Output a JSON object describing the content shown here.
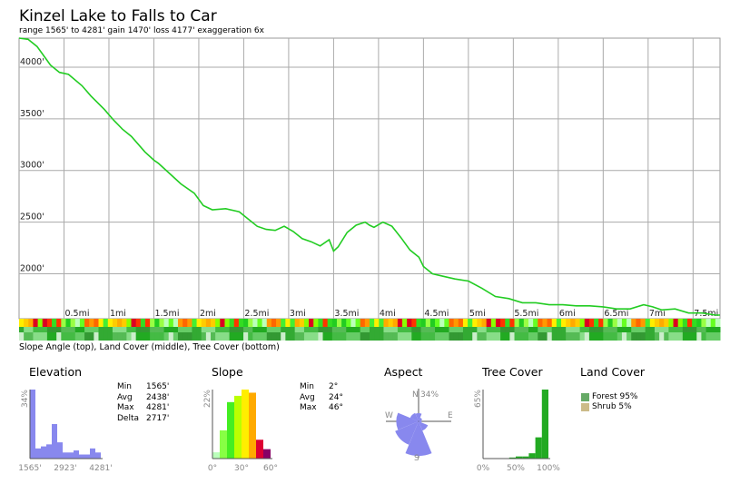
{
  "header": {
    "title": "Kinzel Lake to Falls to Car",
    "subtitle": "range 1565' to 4281'  gain 1470'  loss 4177'  exaggeration 6x"
  },
  "chart_data": [
    {
      "type": "line",
      "name": "elevation-profile",
      "xlim": [
        0,
        7.8
      ],
      "ylim": [
        1565,
        4281
      ],
      "x_ticks": [
        0.5,
        1,
        1.5,
        2,
        2.5,
        3,
        3.5,
        4,
        4.5,
        5,
        5.5,
        6,
        6.5,
        7,
        7.5
      ],
      "x_tick_labels": [
        "0.5mi",
        "1mi",
        "1.5mi",
        "2mi",
        "2.5mi",
        "3mi",
        "3.5mi",
        "4mi",
        "4.5mi",
        "5mi",
        "5.5mi",
        "6mi",
        "6.5mi",
        "7mi",
        "7.5mi"
      ],
      "y_ticks": [
        2000,
        2500,
        3000,
        3500,
        4000
      ],
      "y_tick_labels": [
        "2000'",
        "2500'",
        "3000'",
        "3500'",
        "4000'"
      ],
      "grid": true,
      "series": [
        {
          "color": "#22cc22",
          "x": [
            0,
            0.1,
            0.2,
            0.3,
            0.35,
            0.45,
            0.55,
            0.7,
            0.8,
            0.95,
            1.05,
            1.15,
            1.25,
            1.4,
            1.5,
            1.55,
            1.7,
            1.8,
            1.95,
            2.05,
            2.15,
            2.3,
            2.45,
            2.55,
            2.65,
            2.75,
            2.85,
            2.95,
            3.05,
            3.15,
            3.25,
            3.35,
            3.45,
            3.5,
            3.55,
            3.65,
            3.75,
            3.85,
            3.9,
            3.95,
            4.05,
            4.15,
            4.25,
            4.35,
            4.45,
            4.5,
            4.6,
            4.7,
            4.85,
            5.0,
            5.15,
            5.3,
            5.45,
            5.6,
            5.75,
            5.9,
            6.05,
            6.2,
            6.35,
            6.5,
            6.65,
            6.8,
            6.95,
            7.05,
            7.15,
            7.3,
            7.45,
            7.6,
            7.75,
            7.8
          ],
          "y": [
            4281,
            4270,
            4200,
            4080,
            4020,
            3950,
            3930,
            3820,
            3720,
            3590,
            3490,
            3400,
            3330,
            3180,
            3100,
            3070,
            2950,
            2870,
            2780,
            2660,
            2620,
            2630,
            2600,
            2530,
            2460,
            2430,
            2420,
            2460,
            2410,
            2340,
            2310,
            2270,
            2330,
            2220,
            2260,
            2400,
            2470,
            2500,
            2470,
            2450,
            2500,
            2460,
            2350,
            2230,
            2160,
            2070,
            2000,
            1980,
            1950,
            1930,
            1860,
            1780,
            1760,
            1720,
            1720,
            1700,
            1700,
            1690,
            1690,
            1680,
            1660,
            1660,
            1700,
            1680,
            1650,
            1660,
            1620,
            1620,
            1600,
            1600
          ]
        }
      ]
    },
    {
      "type": "bar",
      "name": "elevation-histogram",
      "title": "Elevation",
      "ylabel": "34%",
      "ylim": [
        0,
        34
      ],
      "x_tick_labels": [
        "1565'",
        "2923'",
        "4281'"
      ],
      "color": "#8888ee",
      "values": [
        34,
        5,
        6,
        7,
        17,
        8,
        3,
        3,
        4,
        2,
        2,
        5,
        3
      ]
    },
    {
      "type": "bar",
      "name": "slope-histogram",
      "title": "Slope",
      "ylabel": "22%",
      "ylim": [
        0,
        22
      ],
      "x_tick_labels": [
        "0°",
        "30°",
        "60°"
      ],
      "values": [
        2,
        9,
        18,
        20,
        22,
        21,
        6,
        3
      ],
      "colors": [
        "#bbffbb",
        "#88ff44",
        "#44ee22",
        "#bbff00",
        "#ffee00",
        "#ffaa00",
        "#dd0033",
        "#880066"
      ]
    },
    {
      "type": "bar",
      "name": "aspect-rose",
      "title": "Aspect",
      "ylabel": "N 34%",
      "categories": [
        "N",
        "NE",
        "E",
        "SE",
        "S",
        "SW",
        "W",
        "NW"
      ],
      "values": [
        8,
        4,
        3,
        10,
        34,
        25,
        22,
        9
      ],
      "color": "#8888ee"
    },
    {
      "type": "bar",
      "name": "tree-cover-histogram",
      "title": "Tree Cover",
      "ylabel": "65%",
      "ylim": [
        0,
        65
      ],
      "x_tick_labels": [
        "0%",
        "50%",
        "100%"
      ],
      "color": "#22aa22",
      "values": [
        0,
        0,
        0,
        0,
        1,
        2,
        2,
        5,
        20,
        65
      ]
    }
  ],
  "strip_caption": "Slope Angle (top), Land Cover (middle), Tree Cover (bottom)",
  "elevation_stats": [
    {
      "k": "Min",
      "v": "1565'"
    },
    {
      "k": "Avg",
      "v": "2438'"
    },
    {
      "k": "Max",
      "v": "4281'"
    },
    {
      "k": "Delta",
      "v": "2717'"
    }
  ],
  "slope_stats": [
    {
      "k": "Min",
      "v": "2°"
    },
    {
      "k": "Avg",
      "v": "24°"
    },
    {
      "k": "Max",
      "v": "46°"
    }
  ],
  "aspect_labels": {
    "n": "N",
    "e": "E",
    "s": "S",
    "w": "W",
    "pct": "34%"
  },
  "land_cover": {
    "title": "Land Cover",
    "items": [
      {
        "label": "Forest 95%",
        "color": "#66aa66"
      },
      {
        "label": "Shrub 5%",
        "color": "#ccbb88"
      }
    ]
  }
}
